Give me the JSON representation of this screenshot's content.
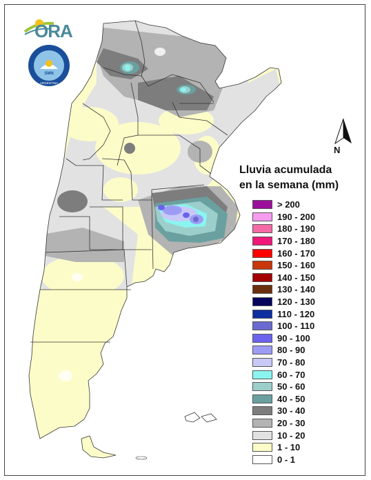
{
  "logo": {
    "text": "ORA"
  },
  "seal": {
    "text_ring": "SERVICIO METEOROLOGICO NACIONAL",
    "country": "ARGENTINA",
    "initials": "SMN"
  },
  "north_arrow": {
    "label": "N"
  },
  "legend": {
    "title_line1": "Lluvia acumulada",
    "title_line2": "en la semana (mm)",
    "classes": [
      {
        "label": "> 200",
        "color": "#9b0f9b"
      },
      {
        "label": "190 - 200",
        "color": "#f79bf0"
      },
      {
        "label": "180 - 190",
        "color": "#f56aa6"
      },
      {
        "label": "170 - 180",
        "color": "#f01878"
      },
      {
        "label": "160 - 170",
        "color": "#ff0000"
      },
      {
        "label": "150 - 160",
        "color": "#c8360a"
      },
      {
        "label": "140 - 150",
        "color": "#a30000"
      },
      {
        "label": "130 - 140",
        "color": "#6b2e0e"
      },
      {
        "label": "120 - 130",
        "color": "#05055e"
      },
      {
        "label": "110 - 120",
        "color": "#0b2ea0"
      },
      {
        "label": "100 - 110",
        "color": "#6a6ad0"
      },
      {
        "label": "90 - 100",
        "color": "#6b63ef"
      },
      {
        "label": "80 - 90",
        "color": "#9d9cf5"
      },
      {
        "label": "70 - 80",
        "color": "#c9c9f7"
      },
      {
        "label": "60 - 70",
        "color": "#8af5f0"
      },
      {
        "label": "50 - 60",
        "color": "#9ccfcc"
      },
      {
        "label": "40 - 50",
        "color": "#6aa0a0"
      },
      {
        "label": "30 - 40",
        "color": "#7d7d7d"
      },
      {
        "label": "20 - 30",
        "color": "#b3b3b3"
      },
      {
        "label": "10 - 20",
        "color": "#e2e2e2"
      },
      {
        "label": "1 - 10",
        "color": "#fcfcc8"
      },
      {
        "label": "0 - 1",
        "color": "#ffffff"
      }
    ]
  }
}
